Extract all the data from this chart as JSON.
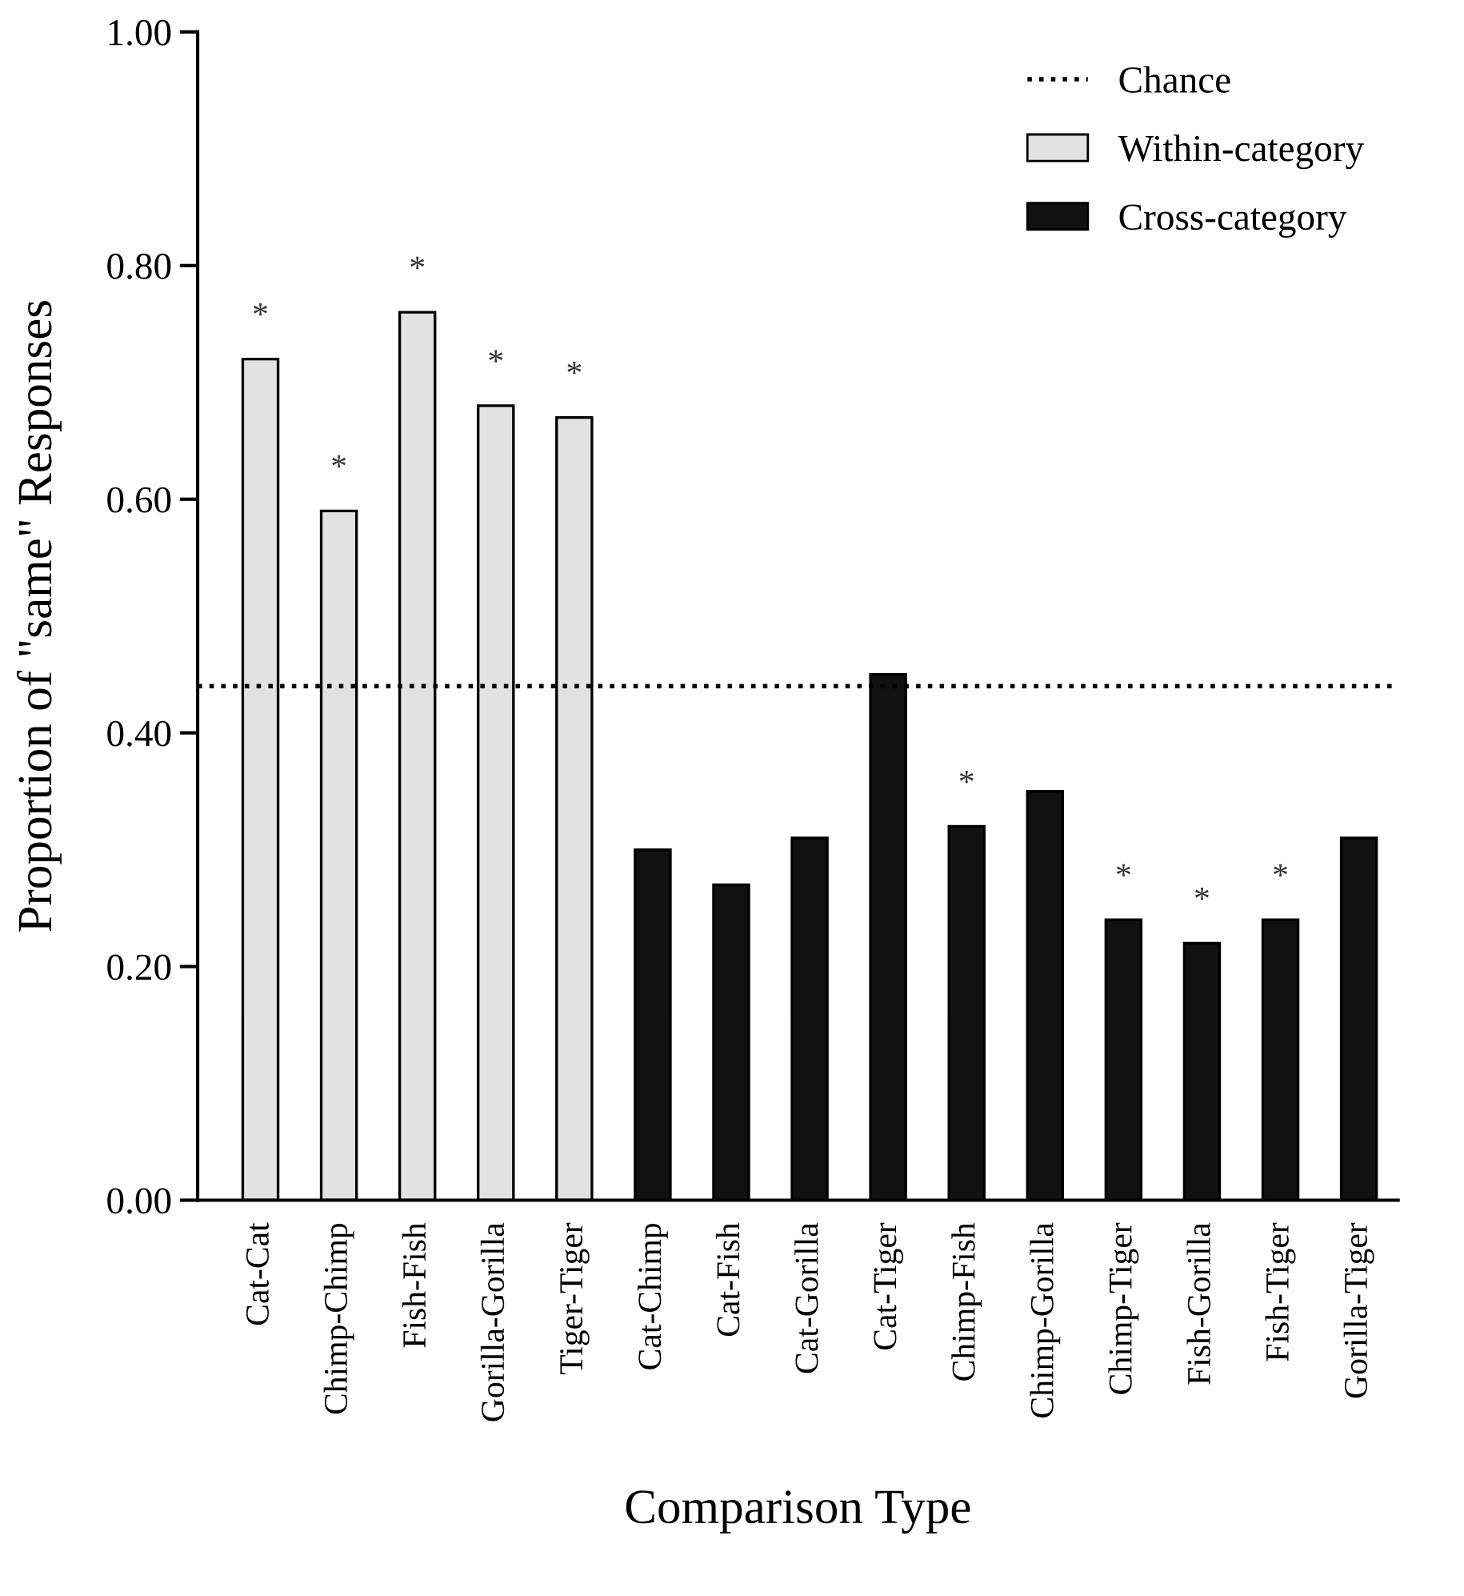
{
  "chart_data": {
    "type": "bar",
    "xlabel": "Comparison Type",
    "ylabel": "Proportion of \"same\" Responses",
    "categories": [
      "Cat-Cat",
      "Chimp-Chimp",
      "Fish-Fish",
      "Gorilla-Gorilla",
      "Tiger-Tiger",
      "Cat-Chimp",
      "Cat-Fish",
      "Cat-Gorilla",
      "Cat-Tiger",
      "Chimp-Fish",
      "Chimp-Gorilla",
      "Chimp-Tiger",
      "Fish-Gorilla",
      "Fish-Tiger",
      "Gorilla-Tiger"
    ],
    "series": [
      {
        "name": "Within-category",
        "color": "#e2e2e2",
        "values": [
          0.72,
          0.59,
          0.76,
          0.68,
          0.67,
          null,
          null,
          null,
          null,
          null,
          null,
          null,
          null,
          null,
          null
        ],
        "value_labels": [
          "*",
          "*",
          "*",
          "*",
          "*",
          null,
          null,
          null,
          null,
          null,
          null,
          null,
          null,
          null,
          null
        ]
      },
      {
        "name": "Cross-category",
        "color": "#111111",
        "values": [
          null,
          null,
          null,
          null,
          null,
          0.3,
          0.27,
          0.31,
          0.45,
          0.32,
          0.35,
          0.24,
          0.22,
          0.24,
          0.31
        ],
        "value_labels": [
          null,
          null,
          null,
          null,
          null,
          null,
          null,
          null,
          null,
          "*",
          null,
          "*",
          "*",
          "*",
          null
        ]
      }
    ],
    "ylim": [
      0,
      1
    ],
    "yticks": [
      {
        "value": 0,
        "label": "0.00"
      },
      {
        "value": 0.2,
        "label": "0.20"
      },
      {
        "value": 0.4,
        "label": "0.40"
      },
      {
        "value": 0.6,
        "label": "0.60"
      },
      {
        "value": 0.8,
        "label": "0.80"
      },
      {
        "value": 1,
        "label": "1.00"
      }
    ],
    "ref_lines": [
      {
        "axis": "y",
        "value": 0.44,
        "label": "Chance",
        "color": "#000000",
        "line_style": "dotted"
      }
    ],
    "legend": "top right",
    "grid": false
  }
}
